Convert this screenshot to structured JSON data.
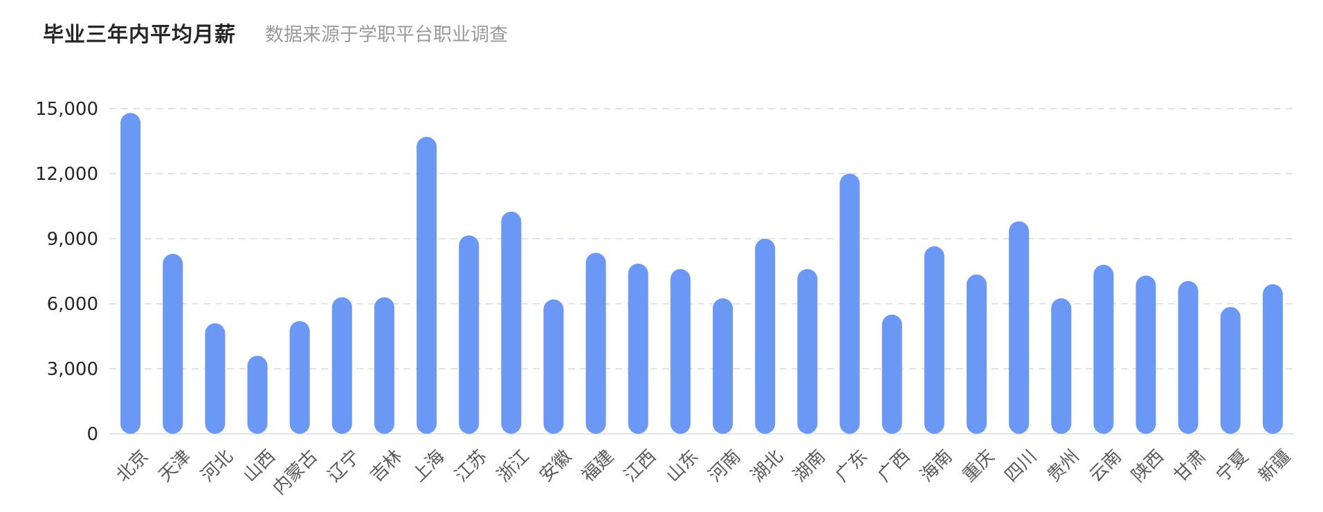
{
  "header": {
    "title": "毕业三年内平均月薪",
    "subtitle": "数据来源于学职平台职业调查"
  },
  "chart_data": {
    "type": "bar",
    "title": "毕业三年内平均月薪",
    "subtitle": "数据来源于学职平台职业调查",
    "xlabel": "",
    "ylabel": "",
    "ylim": [
      0,
      15000
    ],
    "yticks": [
      0,
      3000,
      6000,
      9000,
      12000,
      15000
    ],
    "ytick_labels": [
      "0",
      "3,000",
      "6,000",
      "9,000",
      "12,000",
      "15,000"
    ],
    "grid": "horizontal dashed",
    "bar_color": "#6b98f5",
    "grid_color": "#dfe3ea",
    "categories": [
      "北京",
      "天津",
      "河北",
      "山西",
      "内蒙古",
      "辽宁",
      "吉林",
      "上海",
      "江苏",
      "浙江",
      "安徽",
      "福建",
      "江西",
      "山东",
      "河南",
      "湖北",
      "湖南",
      "广东",
      "广西",
      "海南",
      "重庆",
      "四川",
      "贵州",
      "云南",
      "陕西",
      "甘肃",
      "宁夏",
      "新疆"
    ],
    "values": [
      14800,
      8300,
      5100,
      3600,
      5200,
      6300,
      6300,
      13700,
      9150,
      10250,
      6200,
      8350,
      7850,
      7600,
      6250,
      9000,
      7600,
      12000,
      5500,
      8650,
      7350,
      9800,
      6250,
      7800,
      7300,
      7050,
      5850,
      6900
    ]
  }
}
